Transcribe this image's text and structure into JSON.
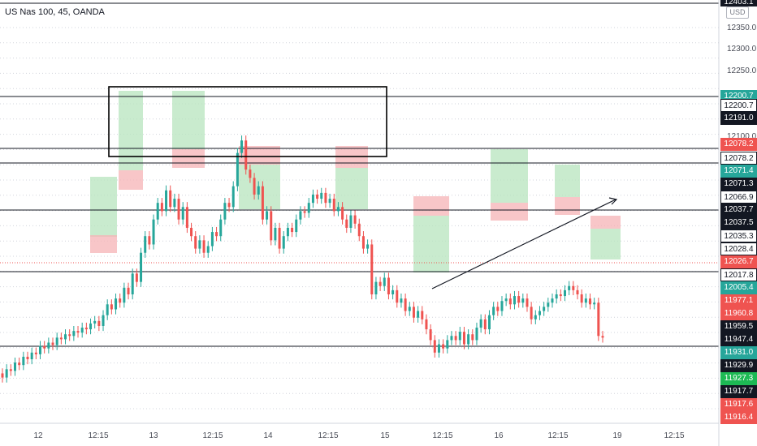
{
  "header": {
    "title": "US Nas 100, 45, OANDA",
    "currency": "USD"
  },
  "colors": {
    "up": "#26a69a",
    "down": "#ef5350",
    "box_green": "#b7e4bd",
    "box_red": "#f5b3b5",
    "grid": "#d1d4dc",
    "axis_text": "#4a4d57"
  },
  "price_axis": {
    "top_label": "12403.1",
    "ticks": [
      "12350.0",
      "12300.0",
      "12250.0",
      "12100.0"
    ],
    "tags": [
      {
        "label": "12200.7",
        "style": "green"
      },
      {
        "label": "12200.7",
        "style": "outline"
      },
      {
        "label": "12191.0",
        "style": "dark"
      },
      {
        "label": "12078.2",
        "style": "red"
      },
      {
        "label": "12078.2",
        "style": "outline"
      },
      {
        "label": "12071.4",
        "style": "green"
      },
      {
        "label": "12071.3",
        "style": "dark"
      },
      {
        "label": "12066.9",
        "style": "outline"
      },
      {
        "label": "12037.7",
        "style": "dark"
      },
      {
        "label": "12037.5",
        "style": "dark"
      },
      {
        "label": "12035.3",
        "style": "outline"
      },
      {
        "label": "12028.4",
        "style": "outline"
      },
      {
        "label": "12026.7",
        "style": "red"
      },
      {
        "label": "12017.8",
        "style": "outline"
      },
      {
        "label": "12005.4",
        "style": "green"
      },
      {
        "label": "11977.1",
        "style": "red"
      },
      {
        "label": "11960.8",
        "style": "red"
      },
      {
        "label": "11959.5",
        "style": "dark"
      },
      {
        "label": "11947.4",
        "style": "dark"
      },
      {
        "label": "11931.0",
        "style": "green"
      },
      {
        "label": "11929.9",
        "style": "dark"
      },
      {
        "label": "11927.3",
        "style": "brightgreen"
      },
      {
        "label": "11917.7",
        "style": "dark"
      },
      {
        "label": "11917.6",
        "style": "red"
      },
      {
        "label": "11916.4",
        "style": "red"
      }
    ]
  },
  "time_axis": {
    "labels": [
      "12",
      "12:15",
      "13",
      "12:15",
      "14",
      "12:15",
      "15",
      "12:15",
      "16",
      "12:15",
      "19",
      "12:15"
    ]
  },
  "chart_data": {
    "type": "candlestick",
    "symbol": "US Nas 100",
    "interval": "45",
    "source": "OANDA",
    "ylim": [
      11905,
      12410
    ],
    "horizontal_levels": [
      12403.1,
      12200.7,
      12078.2,
      12071.3,
      12037.7,
      12017.8,
      11947.4
    ],
    "candles": [
      [
        11965,
        11960
      ],
      [
        11960,
        11970
      ],
      [
        11970,
        11968
      ],
      [
        11968,
        11978
      ],
      [
        11978,
        11975
      ],
      [
        11975,
        11985
      ],
      [
        11985,
        11982
      ],
      [
        11982,
        11990
      ],
      [
        11990,
        11988
      ],
      [
        11988,
        11998
      ],
      [
        11998,
        11995
      ],
      [
        11995,
        12002
      ],
      [
        12002,
        11999
      ],
      [
        11999,
        12008
      ],
      [
        12008,
        12006
      ],
      [
        12006,
        12012
      ],
      [
        12012,
        12010
      ],
      [
        12010,
        12016
      ],
      [
        12016,
        12014
      ],
      [
        12014,
        12020
      ],
      [
        12020,
        12018
      ],
      [
        12018,
        12025
      ],
      [
        12025,
        12028
      ],
      [
        12028,
        12022
      ],
      [
        12022,
        12035
      ],
      [
        12035,
        12048
      ],
      [
        12048,
        12042
      ],
      [
        12042,
        12055
      ],
      [
        12055,
        12050
      ],
      [
        12050,
        12068
      ],
      [
        12068,
        12060
      ],
      [
        12060,
        12085
      ],
      [
        12085,
        12075
      ],
      [
        12075,
        12110
      ],
      [
        12110,
        12130
      ],
      [
        12130,
        12120
      ],
      [
        12120,
        12150
      ],
      [
        12150,
        12170
      ],
      [
        12170,
        12160
      ],
      [
        12160,
        12185
      ],
      [
        12185,
        12165
      ],
      [
        12165,
        12175
      ],
      [
        12175,
        12150
      ],
      [
        12150,
        12165
      ],
      [
        12165,
        12140
      ],
      [
        12140,
        12130
      ],
      [
        12130,
        12115
      ],
      [
        12115,
        12125
      ],
      [
        12125,
        12110
      ],
      [
        12110,
        12118
      ],
      [
        12118,
        12135
      ],
      [
        12135,
        12130
      ],
      [
        12130,
        12150
      ],
      [
        12150,
        12170
      ],
      [
        12170,
        12165
      ],
      [
        12165,
        12190
      ],
      [
        12190,
        12230
      ],
      [
        12230,
        12245
      ],
      [
        12245,
        12210
      ],
      [
        12210,
        12200
      ],
      [
        12200,
        12180
      ],
      [
        12180,
        12190
      ],
      [
        12190,
        12150
      ],
      [
        12150,
        12160
      ],
      [
        12160,
        12125
      ],
      [
        12125,
        12140
      ],
      [
        12140,
        12115
      ],
      [
        12115,
        12130
      ],
      [
        12130,
        12140
      ],
      [
        12140,
        12135
      ],
      [
        12135,
        12150
      ],
      [
        12150,
        12160
      ],
      [
        12160,
        12158
      ],
      [
        12158,
        12170
      ],
      [
        12170,
        12180
      ],
      [
        12180,
        12175
      ],
      [
        12175,
        12182
      ],
      [
        12182,
        12170
      ],
      [
        12170,
        12175
      ],
      [
        12175,
        12160
      ],
      [
        12160,
        12165
      ],
      [
        12165,
        12150
      ],
      [
        12150,
        12140
      ],
      [
        12140,
        12155
      ],
      [
        12155,
        12145
      ],
      [
        12145,
        12130
      ],
      [
        12130,
        12115
      ],
      [
        12115,
        12120
      ],
      [
        12120,
        12060
      ],
      [
        12060,
        12075
      ],
      [
        12075,
        12070
      ],
      [
        12070,
        12080
      ],
      [
        12080,
        12060
      ],
      [
        12060,
        12065
      ],
      [
        12065,
        12050
      ],
      [
        12050,
        12055
      ],
      [
        12055,
        12040
      ],
      [
        12040,
        12045
      ],
      [
        12045,
        12032
      ],
      [
        12032,
        12040
      ],
      [
        12040,
        12030
      ],
      [
        12030,
        12018
      ],
      [
        12018,
        12005
      ],
      [
        12005,
        11990
      ],
      [
        11990,
        12000
      ],
      [
        12000,
        11995
      ],
      [
        11995,
        12005
      ],
      [
        12005,
        12010
      ],
      [
        12010,
        12005
      ],
      [
        12005,
        12015
      ],
      [
        12015,
        12000
      ],
      [
        12000,
        12012
      ],
      [
        12012,
        12005
      ],
      [
        12005,
        12020
      ],
      [
        12020,
        12030
      ],
      [
        12030,
        12018
      ],
      [
        12018,
        12035
      ],
      [
        12035,
        12045
      ],
      [
        12045,
        12040
      ],
      [
        12040,
        12052
      ],
      [
        12052,
        12055
      ],
      [
        12055,
        12048
      ],
      [
        12048,
        12058
      ],
      [
        12058,
        12050
      ],
      [
        12050,
        12055
      ],
      [
        12055,
        12045
      ],
      [
        12045,
        12030
      ],
      [
        12030,
        12035
      ],
      [
        12035,
        12040
      ],
      [
        12040,
        12045
      ],
      [
        12045,
        12050
      ],
      [
        12050,
        12055
      ],
      [
        12055,
        12060
      ],
      [
        12060,
        12058
      ],
      [
        12058,
        12065
      ],
      [
        12065,
        12070
      ],
      [
        12070,
        12065
      ],
      [
        12065,
        12060
      ],
      [
        12060,
        12050
      ],
      [
        12050,
        12055
      ],
      [
        12055,
        12048
      ],
      [
        12048,
        12050
      ],
      [
        12050,
        12010
      ],
      [
        12010,
        12008
      ]
    ]
  }
}
